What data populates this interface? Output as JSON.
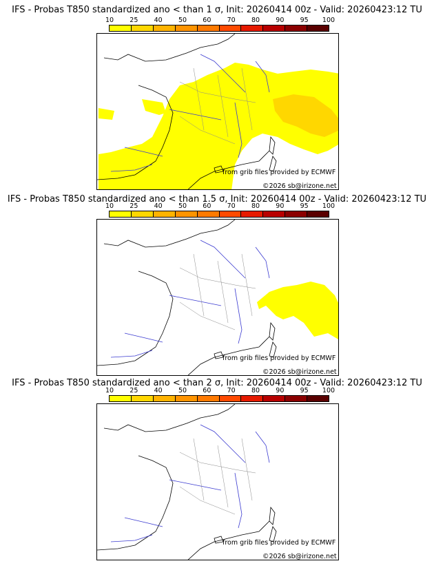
{
  "panels": [
    {
      "title": "IFS - Probas T850  standardized ano < than 1 σ, Init: 20260414 00z - Valid: 20260423:12 TU",
      "credit_source": "from grib files provided by ECMWF",
      "credit_copyright": "©2026 sb@irizone.net"
    },
    {
      "title": "IFS - Probas T850  standardized ano < than 1.5 σ, Init: 20260414 00z - Valid: 20260423:12 TU",
      "credit_source": "from grib files provided by ECMWF",
      "credit_copyright": "©2026 sb@irizone.net"
    },
    {
      "title": "IFS - Probas T850  standardized ano < than 2 σ, Init: 20260414 00z - Valid: 20260423:12 TU",
      "credit_source": "from grib files provided by ECMWF",
      "credit_copyright": "©2026 sb@irizone.net"
    }
  ],
  "colorbar": {
    "labels": [
      "10",
      "25",
      "40",
      "50",
      "60",
      "70",
      "80",
      "90",
      "95",
      "100"
    ],
    "colors": [
      "#ffff00",
      "#ffd700",
      "#ffb300",
      "#ff9400",
      "#ff7a00",
      "#ff4a00",
      "#e61a00",
      "#b80000",
      "#8b0000",
      "#5a0000"
    ]
  }
}
